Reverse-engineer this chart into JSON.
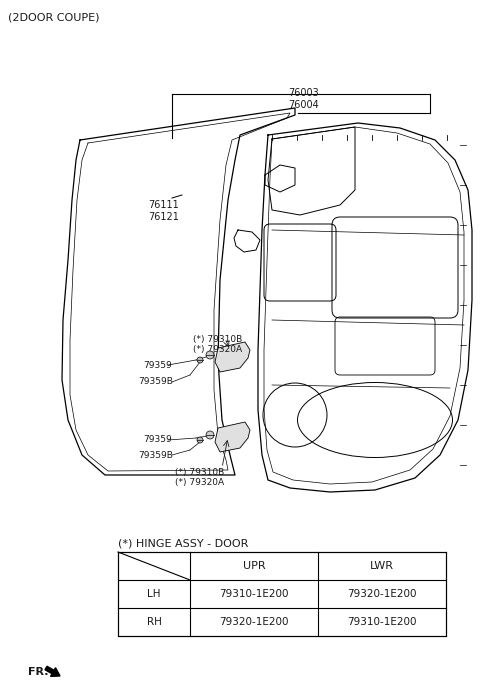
{
  "title": "(2DOOR COUPE)",
  "bg_color": "#ffffff",
  "text_color": "#1a1a1a",
  "table_title": "(*) HINGE ASSY - DOOR",
  "table_headers": [
    "",
    "UPR",
    "LWR"
  ],
  "table_rows": [
    [
      "LH",
      "79310-1E200",
      "79320-1E200"
    ],
    [
      "RH",
      "79320-1E200",
      "79310-1E200"
    ]
  ],
  "label_76003": "76003\n76004",
  "label_76111": "76111\n76121",
  "label_79310B_u": "(*) 79310B\n(*) 79320A",
  "label_79359_u": "79359",
  "label_79359B_u": "79359B",
  "label_79359_l": "79359",
  "label_79359B_l": "79359B",
  "label_79310B_l": "(*) 79310B\n(*) 79320A",
  "fr_text": "FR."
}
